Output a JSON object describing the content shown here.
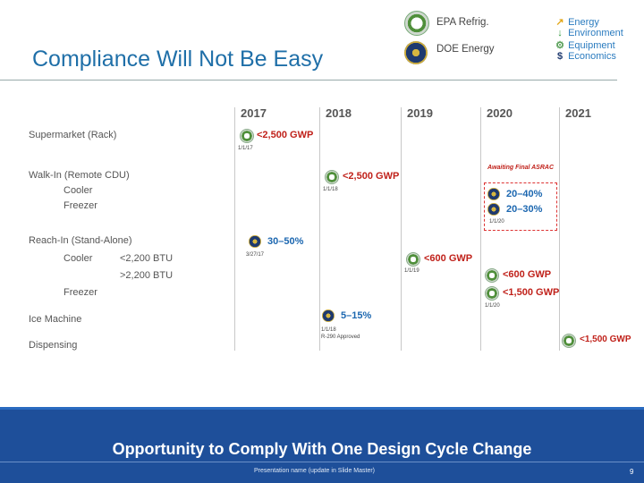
{
  "header": {
    "title": "Compliance Will Not Be Easy",
    "sources": [
      {
        "label": "EPA Refrig.",
        "icon": "epa-seal-icon"
      },
      {
        "label": "DOE Energy",
        "icon": "doe-seal-icon"
      }
    ],
    "legend": [
      {
        "glyph": "↗",
        "label": "Energy",
        "icon": "energy-arrow-icon",
        "color": "#e3a81c"
      },
      {
        "glyph": "↓",
        "label": "Environment",
        "icon": "environment-arrow-icon",
        "color": "#2f9a3b"
      },
      {
        "glyph": "⚙",
        "label": "Equipment",
        "icon": "equipment-gear-icon",
        "color": "#5aa05a"
      },
      {
        "glyph": "$",
        "label": "Economics",
        "icon": "economics-dollar-icon",
        "color": "#1f3a6f"
      }
    ]
  },
  "timeline": {
    "years": [
      "2017",
      "2018",
      "2019",
      "2020",
      "2021"
    ],
    "rows": {
      "supermarket": "Supermarket (Rack)",
      "walkin": "Walk-In (Remote CDU)",
      "walkin_cooler": "Cooler",
      "walkin_freezer": "Freezer",
      "reachin": "Reach-In (Stand-Alone)",
      "reachin_cooler": "Cooler",
      "reachin_small": "<2,200 BTU",
      "reachin_large": ">2,200 BTU",
      "reachin_freezer": "Freezer",
      "ice": "Ice Machine",
      "dispensing": "Dispensing"
    },
    "events": {
      "supermarket_2017": {
        "text": "<2,500 GWP",
        "date": "1/1/17"
      },
      "walkin_2018": {
        "text": "<2,500 GWP",
        "date": "1/1/18"
      },
      "walkin_cooler_2020": {
        "text": "20–40%"
      },
      "walkin_freezer_2020": {
        "text": "20–30%",
        "date": "1/1/20"
      },
      "ashrac_note": "Awaiting Final ASRAC",
      "reachin_2017": {
        "text": "30–50%",
        "date": "3/27/17"
      },
      "reachin_2019": {
        "text": "<600 GWP",
        "date": "1/1/19"
      },
      "reachin_2020_a": {
        "text": "<600 GWP"
      },
      "reachin_2020_b": {
        "text": "<1,500 GWP",
        "date": "1/1/20"
      },
      "ice_2018": {
        "text": "5–15%",
        "date": "1/1/18",
        "note": "R-290 Approved"
      },
      "dispensing_2021": {
        "text": "<1,500 GWP"
      }
    }
  },
  "footer": {
    "banner": "Opportunity to Comply With One Design Cycle Change",
    "note": "Presentation name (update in Slide Master)",
    "page": "9"
  }
}
